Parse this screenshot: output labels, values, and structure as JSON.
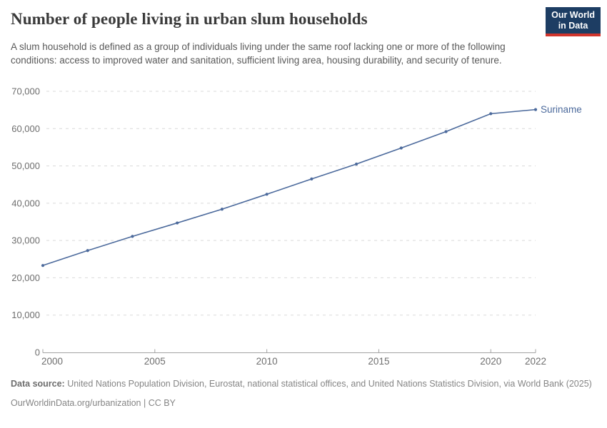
{
  "header": {
    "title": "Number of people living in urban slum households",
    "subtitle": "A slum household is defined as a group of individuals living under the same roof lacking one or more of the following conditions: access to improved water and sanitation, sufficient living area, housing durability, and security of tenure.",
    "logo": {
      "line1": "Our World",
      "line2": "in Data"
    }
  },
  "chart_data": {
    "type": "line",
    "title": "Number of people living in urban slum households",
    "xlabel": "",
    "ylabel": "",
    "xlim": [
      2000,
      2022
    ],
    "ylim": [
      0,
      70000
    ],
    "grid": "horizontal-dashed",
    "legend_position": "end-of-line-label",
    "xticks": [
      {
        "value": 2000,
        "label": "2000"
      },
      {
        "value": 2005,
        "label": "2005"
      },
      {
        "value": 2010,
        "label": "2010"
      },
      {
        "value": 2015,
        "label": "2015"
      },
      {
        "value": 2020,
        "label": "2020"
      },
      {
        "value": 2022,
        "label": "2022"
      }
    ],
    "yticks": [
      {
        "value": 0,
        "label": "0"
      },
      {
        "value": 10000,
        "label": "10,000"
      },
      {
        "value": 20000,
        "label": "20,000"
      },
      {
        "value": 30000,
        "label": "30,000"
      },
      {
        "value": 40000,
        "label": "40,000"
      },
      {
        "value": 50000,
        "label": "50,000"
      },
      {
        "value": 60000,
        "label": "60,000"
      },
      {
        "value": 70000,
        "label": "70,000"
      }
    ],
    "series": [
      {
        "name": "Suriname",
        "color": "#4c6a9c",
        "x": [
          2000,
          2002,
          2004,
          2006,
          2008,
          2010,
          2012,
          2014,
          2016,
          2018,
          2020,
          2022
        ],
        "values": [
          23300,
          27300,
          31100,
          34700,
          38400,
          42400,
          46500,
          50500,
          54800,
          59200,
          64000,
          65100
        ]
      }
    ]
  },
  "colors": {
    "accent_blue": "#4c6a9c",
    "logo_navy": "#1d3d63",
    "logo_red": "#d0342c",
    "gridline": "#dadada",
    "axis": "#a3a3a3",
    "tick_text": "#6e6e6e",
    "title_text": "#3a3a3a",
    "subtitle_text": "#595959"
  },
  "footer": {
    "datasource_label": "Data source:",
    "datasource_text": " United Nations Population Division, Eurostat, national statistical offices, and United Nations Statistics Division, via World Bank (2025)",
    "link_line": "OurWorldinData.org/urbanization | CC BY"
  }
}
